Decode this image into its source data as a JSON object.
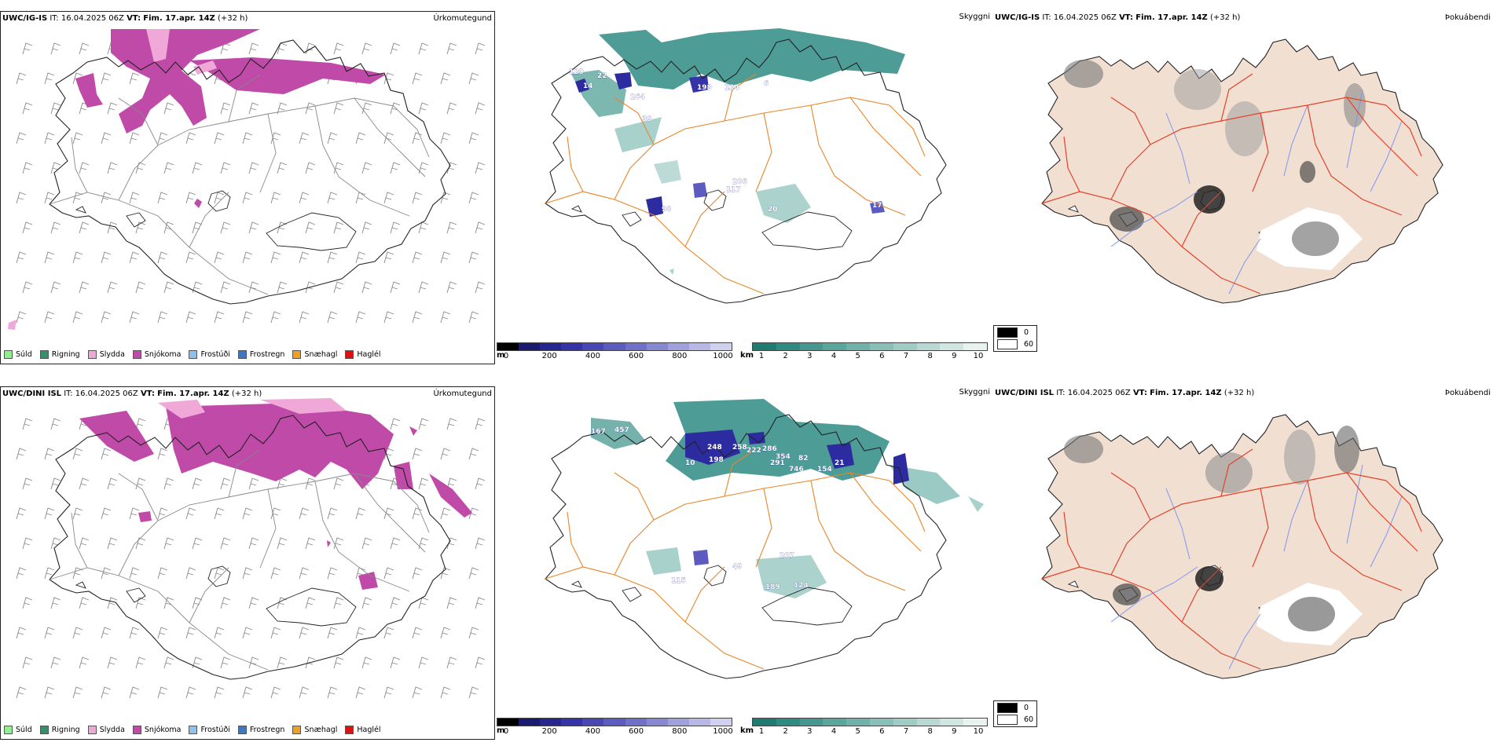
{
  "rows": [
    {
      "model": "UWC/IG-IS",
      "it_label": "IT:",
      "it_value": "16.04.2025 06Z",
      "vt_label": "VT:",
      "vt_value": "Fim. 17.apr. 14Z",
      "lead": "(+32 h)",
      "precip_title": "Úrkomutegund",
      "vis_title": "Skyggni",
      "cloud_title": "Þokuábendi",
      "snow_labels": [
        "120",
        "22",
        "14",
        "264",
        "198",
        "124",
        "6",
        "38",
        "206",
        "117",
        "98",
        "20",
        "17"
      ]
    },
    {
      "model": "UWC/DINI ISL",
      "it_label": "IT:",
      "it_value": "16.04.2025 06Z",
      "vt_label": "VT:",
      "vt_value": "Fim. 17.apr. 14Z",
      "lead": "(+32 h)",
      "precip_title": "Úrkomutegund",
      "vis_title": "Skyggni",
      "cloud_title": "Þokuábendi",
      "snow_labels": [
        "167",
        "457",
        "248",
        "198",
        "258",
        "222",
        "286",
        "291",
        "354",
        "82",
        "746",
        "154",
        "21",
        "10",
        "207",
        "115",
        "189",
        "124",
        "49"
      ]
    }
  ],
  "precip_legend": [
    {
      "label": "Súld",
      "color": "#90ee90"
    },
    {
      "label": "Rigning",
      "color": "#3a8f6a"
    },
    {
      "label": "Slydda",
      "color": "#f0a8d8"
    },
    {
      "label": "Snjókoma",
      "color": "#c04aa8"
    },
    {
      "label": "Frostúði",
      "color": "#8fc0ef"
    },
    {
      "label": "Frostregn",
      "color": "#3f78c0"
    },
    {
      "label": "Snæhagl",
      "color": "#f0a020"
    },
    {
      "label": "Haglél",
      "color": "#e01010"
    }
  ],
  "height_bar": {
    "unit": "m",
    "ticks": [
      "0",
      "200",
      "400",
      "600",
      "800",
      "1000"
    ],
    "colors": [
      "#000000",
      "#1a1a6e",
      "#26268f",
      "#3434a8",
      "#4848b5",
      "#5c5cc0",
      "#7070c8",
      "#8888d2",
      "#a0a0dc",
      "#b8b8e6",
      "#d0d0f0"
    ]
  },
  "vis_bar": {
    "unit": "km",
    "ticks": [
      "1",
      "2",
      "3",
      "4",
      "5",
      "6",
      "7",
      "8",
      "9",
      "10"
    ],
    "colors": [
      "#1f7a72",
      "#2f8a82",
      "#45988f",
      "#5aa59c",
      "#70b2a9",
      "#88bfb7",
      "#a0ccc5",
      "#b8d9d3",
      "#d0e6e1",
      "#e8f2ef"
    ]
  },
  "cloud_legend": [
    {
      "label": "0",
      "color": "#000000"
    },
    {
      "label": "60",
      "color": "#ffffff"
    }
  ],
  "colors": {
    "snow": "#c04aa8",
    "sleet": "#f0a8d8",
    "teal": "#2e8b84",
    "navy": "#2c2ca0",
    "road": "#e8862a",
    "land": "#f1dfd2",
    "river": "#7f95f0",
    "redroad": "#e2432a"
  }
}
